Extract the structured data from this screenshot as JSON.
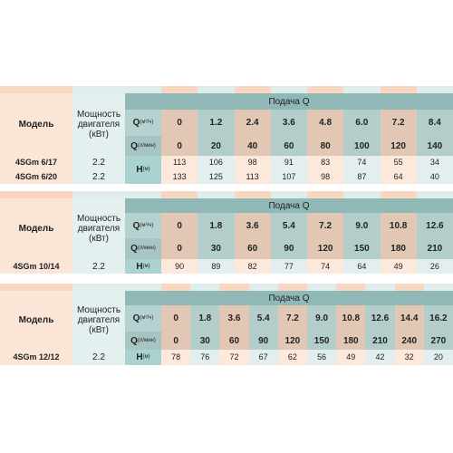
{
  "tables": [
    {
      "model_header": "Модель",
      "power_header": "Мощность двигателя (кВт)",
      "flow_header": "Подача Q",
      "q_rows": [
        {
          "symbol": "Q",
          "unit": "(м³/ч)",
          "values": [
            "0",
            "1.2",
            "2.4",
            "3.6",
            "4.8",
            "6.0",
            "7.2",
            "8.4"
          ]
        },
        {
          "symbol": "Q",
          "unit": "(л/мин)",
          "values": [
            "0",
            "20",
            "40",
            "60",
            "80",
            "100",
            "120",
            "140"
          ]
        }
      ],
      "head_label": {
        "symbol": "H",
        "unit": "(м)"
      },
      "rows": [
        {
          "model": "4SGm 6/17",
          "power": "2.2",
          "head": [
            "113",
            "106",
            "98",
            "91",
            "83",
            "74",
            "55",
            "34"
          ]
        },
        {
          "model": "4SGm 6/20",
          "power": "2.2",
          "head": [
            "133",
            "125",
            "113",
            "107",
            "98",
            "87",
            "64",
            "40"
          ]
        }
      ]
    },
    {
      "model_header": "Модель",
      "power_header": "Мощность двигателя (кВт)",
      "flow_header": "Подача Q",
      "q_rows": [
        {
          "symbol": "Q",
          "unit": "(м³/ч)",
          "values": [
            "0",
            "1.8",
            "3.6",
            "5.4",
            "7.2",
            "9.0",
            "10.8",
            "12.6"
          ]
        },
        {
          "symbol": "Q",
          "unit": "(л/мин)",
          "values": [
            "0",
            "30",
            "60",
            "90",
            "120",
            "150",
            "180",
            "210"
          ]
        }
      ],
      "head_label": {
        "symbol": "H",
        "unit": "(м)"
      },
      "rows": [
        {
          "model": "4SGm 10/14",
          "power": "2.2",
          "head": [
            "90",
            "89",
            "82",
            "77",
            "74",
            "64",
            "49",
            "26"
          ]
        }
      ]
    },
    {
      "model_header": "Модель",
      "power_header": "Мощность двигателя (кВт)",
      "flow_header": "Подача Q",
      "q_rows": [
        {
          "symbol": "Q",
          "unit": "(м³/ч)",
          "values": [
            "0",
            "1.8",
            "3.6",
            "5.4",
            "7.2",
            "9.0",
            "10.8",
            "12.6",
            "14.4",
            "16.2"
          ]
        },
        {
          "symbol": "Q",
          "unit": "(л/мин)",
          "values": [
            "0",
            "30",
            "60",
            "90",
            "120",
            "150",
            "180",
            "210",
            "240",
            "270"
          ]
        }
      ],
      "head_label": {
        "symbol": "H",
        "unit": "(м)"
      },
      "rows": [
        {
          "model": "4SGm 12/12",
          "power": "2.2",
          "head": [
            "78",
            "76",
            "72",
            "67",
            "62",
            "56",
            "49",
            "42",
            "32",
            "20"
          ]
        }
      ]
    }
  ]
}
